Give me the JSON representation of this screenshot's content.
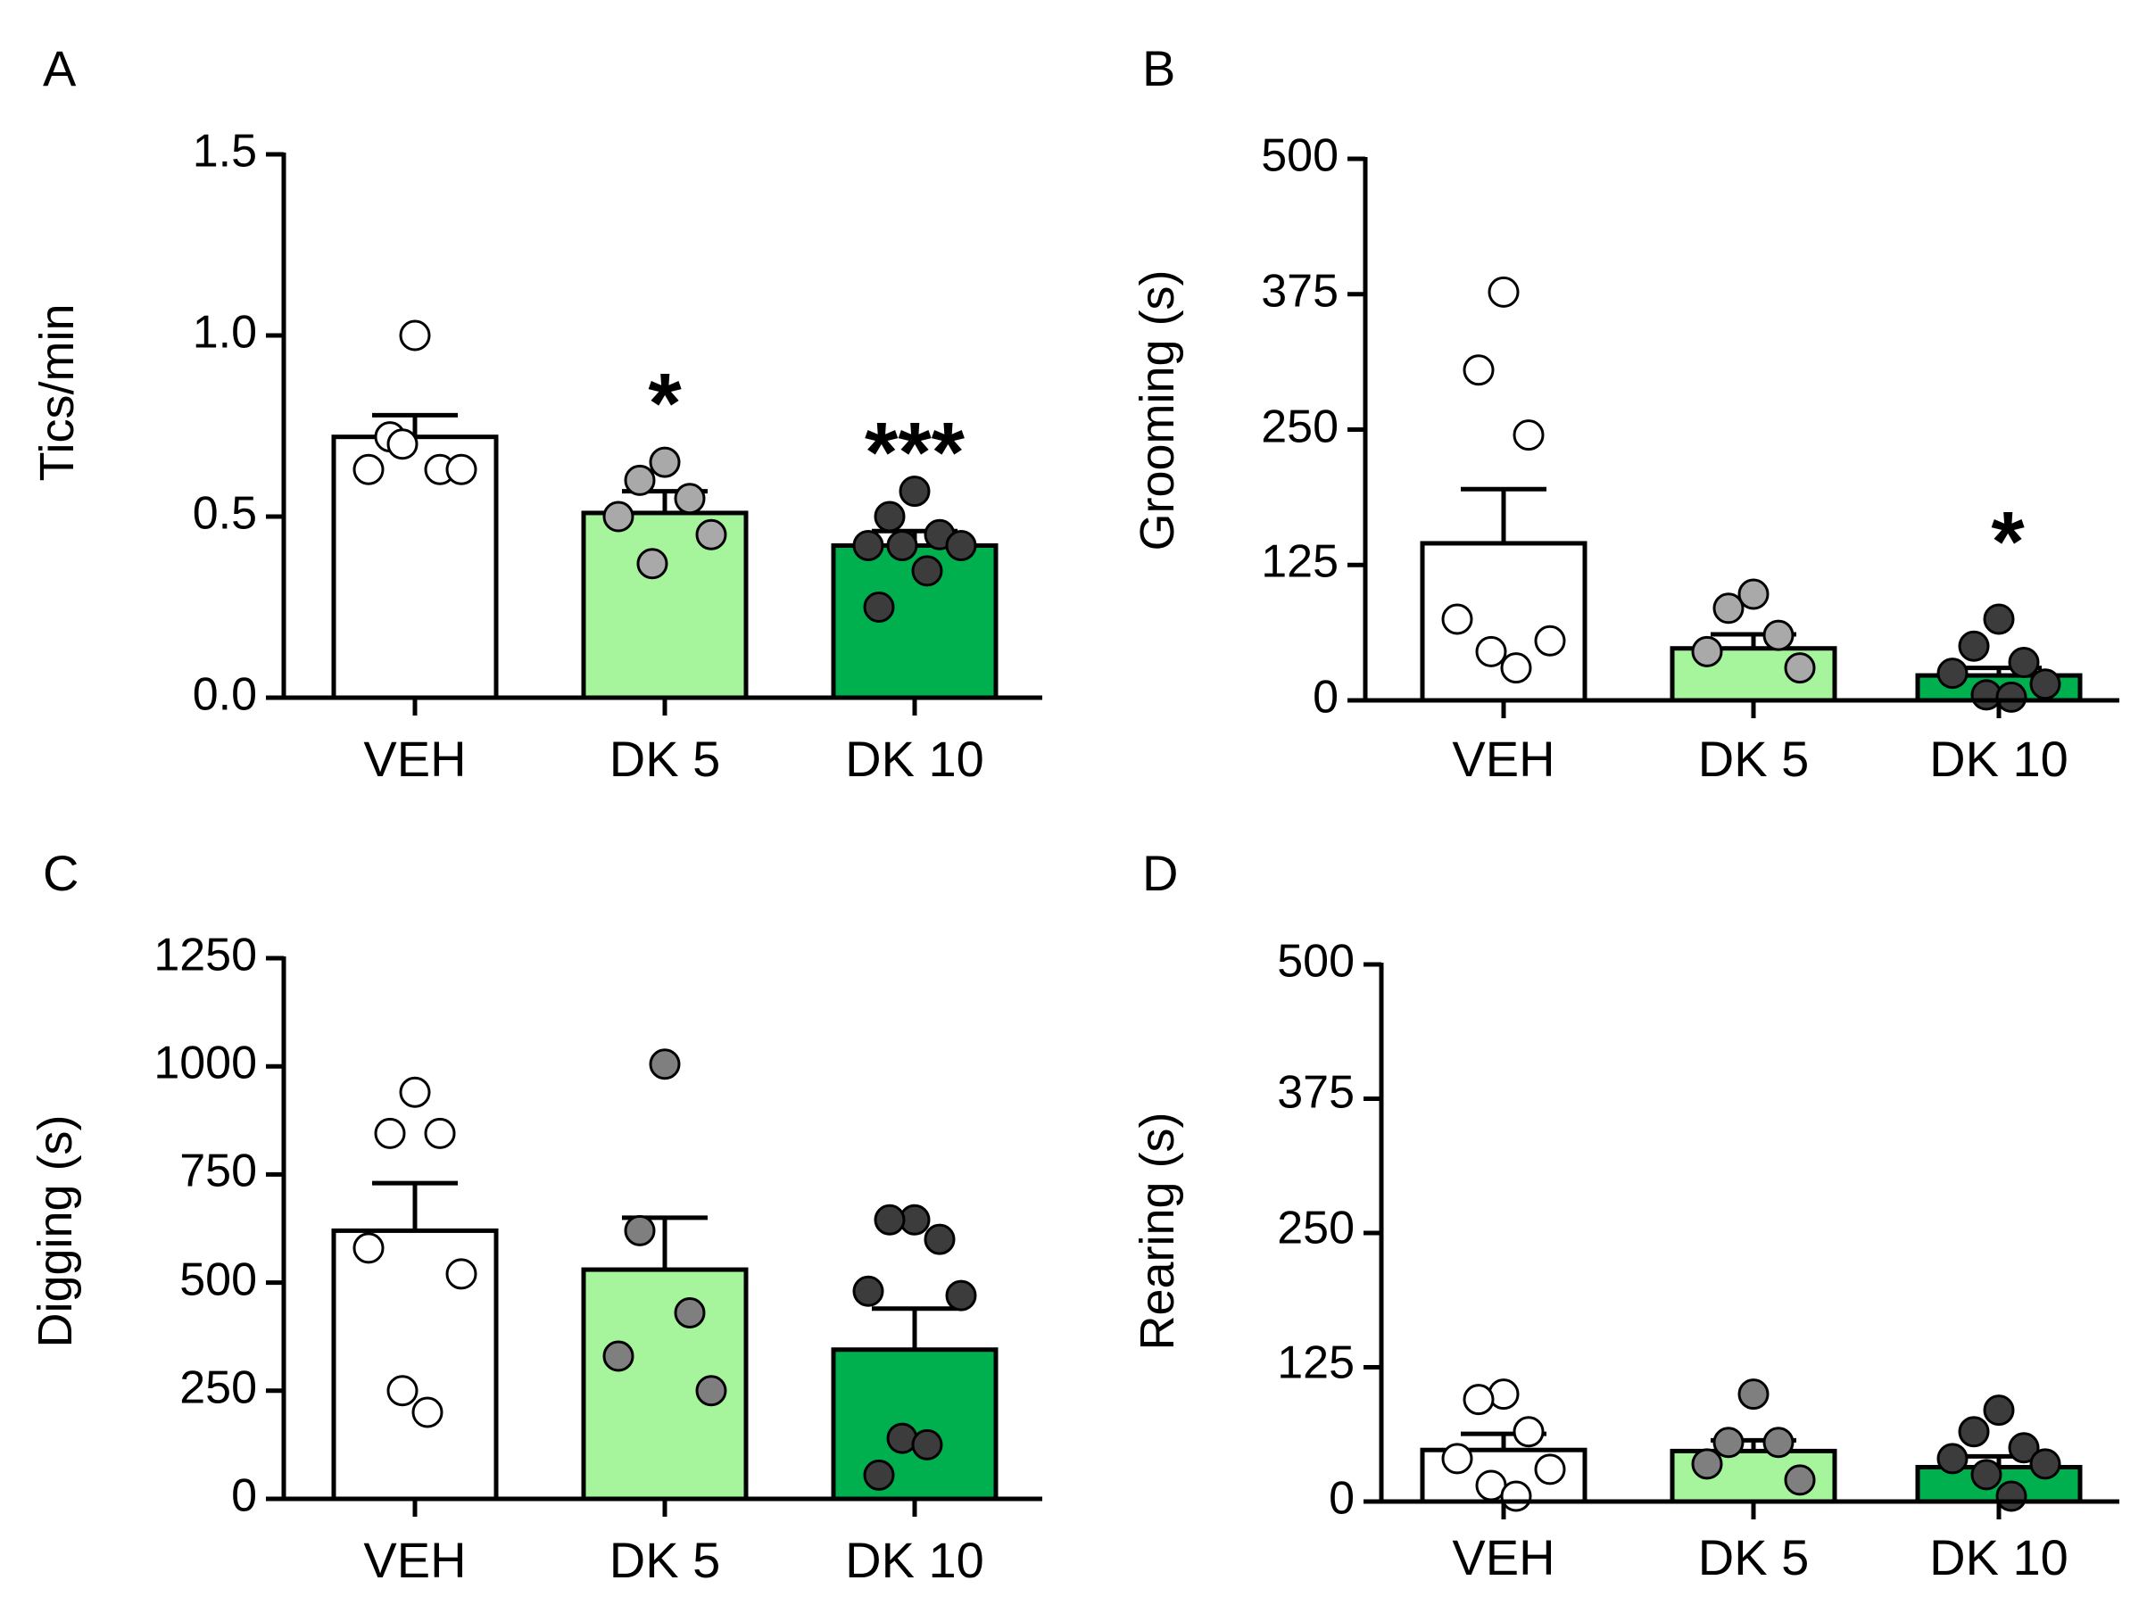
{
  "chart_data": [
    {
      "panel": "A",
      "type": "bar",
      "ylabel": "Tics/min",
      "categories": [
        "VEH",
        "DK 5",
        "DK 10"
      ],
      "yticks": [
        0.0,
        0.5,
        1.0,
        1.5
      ],
      "ytick_labels": [
        "0.0",
        "0.5",
        "1.0",
        "1.5"
      ],
      "ylim": [
        0,
        1.5
      ],
      "values": [
        0.72,
        0.51,
        0.42
      ],
      "sem": [
        0.06,
        0.06,
        0.04
      ],
      "points": [
        [
          1.0,
          0.72,
          0.63,
          0.63,
          0.63,
          0.7
        ],
        [
          0.65,
          0.6,
          0.55,
          0.5,
          0.45,
          0.37
        ],
        [
          0.57,
          0.5,
          0.45,
          0.42,
          0.42,
          0.42,
          0.35,
          0.25
        ]
      ],
      "significance": [
        "",
        "*",
        "***"
      ],
      "bar_colors": [
        "#ffffff",
        "#a6f59c",
        "#00b04f"
      ],
      "point_colors": [
        "#ffffff",
        "#a9a9a9",
        "#3c3c3c"
      ]
    },
    {
      "panel": "B",
      "type": "bar",
      "ylabel": "Grooming (s)",
      "categories": [
        "VEH",
        "DK 5",
        "DK 10"
      ],
      "yticks": [
        0,
        125,
        250,
        375,
        500
      ],
      "ytick_labels": [
        "0",
        "125",
        "250",
        "375",
        "500"
      ],
      "ylim": [
        0,
        500
      ],
      "values": [
        145,
        48,
        23
      ],
      "sem": [
        50,
        13,
        7
      ],
      "points": [
        [
          377,
          305,
          245,
          75,
          55,
          45,
          30
        ],
        [
          98,
          85,
          60,
          45,
          30
        ],
        [
          75,
          50,
          35,
          25,
          15,
          5,
          3
        ]
      ],
      "significance": [
        "",
        "",
        "*"
      ],
      "bar_colors": [
        "#ffffff",
        "#a6f59c",
        "#00b04f"
      ],
      "point_colors": [
        "#ffffff",
        "#a9a9a9",
        "#3c3c3c"
      ]
    },
    {
      "panel": "C",
      "type": "bar",
      "ylabel": "Digging (s)",
      "categories": [
        "VEH",
        "DK 5",
        "DK 10"
      ],
      "yticks": [
        0,
        250,
        500,
        750,
        1000,
        1250
      ],
      "ytick_labels": [
        "0",
        "250",
        "500",
        "750",
        "1000",
        "1250"
      ],
      "ylim": [
        0,
        1250
      ],
      "values": [
        620,
        530,
        345
      ],
      "sem": [
        110,
        120,
        95
      ],
      "points": [
        [
          940,
          845,
          845,
          580,
          520,
          250,
          200
        ],
        [
          1005,
          620,
          430,
          330,
          250
        ],
        [
          645,
          645,
          600,
          480,
          470,
          140,
          125,
          55
        ]
      ],
      "significance": [
        "",
        "",
        ""
      ],
      "bar_colors": [
        "#ffffff",
        "#a6f59c",
        "#00b04f"
      ],
      "point_colors": [
        "#ffffff",
        "#7f7f7f",
        "#3c3c3c"
      ]
    },
    {
      "panel": "D",
      "type": "bar",
      "ylabel": "Rearing (s)",
      "categories": [
        "VEH",
        "DK 5",
        "DK 10"
      ],
      "yticks": [
        0,
        125,
        250,
        375,
        500
      ],
      "ytick_labels": [
        "0",
        "125",
        "250",
        "375",
        "500"
      ],
      "ylim": [
        0,
        500
      ],
      "values": [
        48,
        47,
        32
      ],
      "sem": [
        15,
        10,
        10
      ],
      "points": [
        [
          100,
          95,
          65,
          40,
          30,
          15,
          5
        ],
        [
          100,
          55,
          55,
          35,
          20
        ],
        [
          85,
          65,
          50,
          40,
          35,
          25,
          5
        ]
      ],
      "significance": [
        "",
        "",
        ""
      ],
      "bar_colors": [
        "#ffffff",
        "#a6f59c",
        "#00b04f"
      ],
      "point_colors": [
        "#ffffff",
        "#7f7f7f",
        "#3c3c3c"
      ]
    }
  ]
}
